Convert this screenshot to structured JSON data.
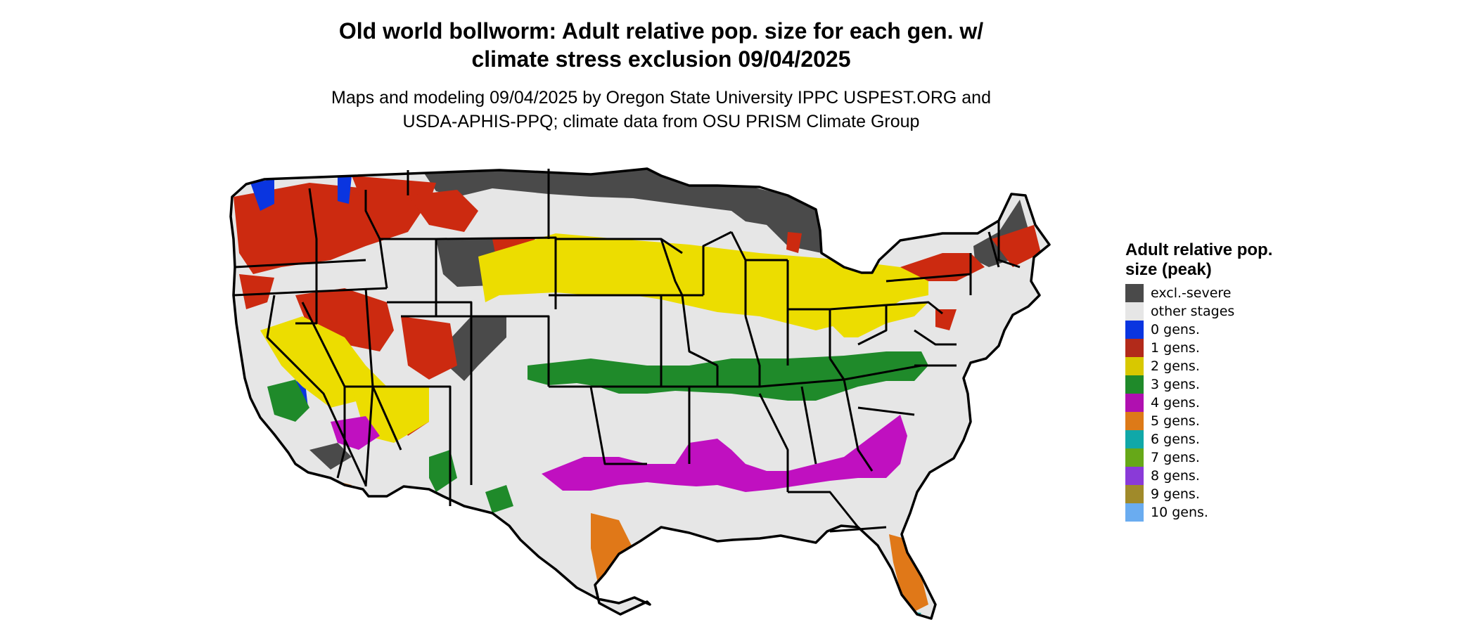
{
  "title_line1": "Old world bollworm: Adult relative pop. size for each gen. w/",
  "title_line2": "climate stress exclusion 09/04/2025",
  "subtitle_line1": "Maps and modeling 09/04/2025 by Oregon State University IPPC USPEST.ORG and",
  "subtitle_line2": "USDA-APHIS-PPQ; climate data from OSU PRISM Climate Group",
  "legend": {
    "title": "Adult relative pop. size (peak)",
    "items": [
      {
        "label": "excl.-severe",
        "color": "#4a4a4a"
      },
      {
        "label": "other stages",
        "color": "#e6e6e6"
      },
      {
        "label": "0 gens.",
        "color": "#0a35e0"
      },
      {
        "label": "1 gens.",
        "color": "#b22a1a"
      },
      {
        "label": "2 gens.",
        "color": "#d8c800"
      },
      {
        "label": "3 gens.",
        "color": "#1f8a2a"
      },
      {
        "label": "4 gens.",
        "color": "#b010b0"
      },
      {
        "label": "5 gens.",
        "color": "#dd7a18"
      },
      {
        "label": "6 gens.",
        "color": "#10a8a8"
      },
      {
        "label": "7 gens.",
        "color": "#66a818"
      },
      {
        "label": "8 gens.",
        "color": "#8a3ad8"
      },
      {
        "label": "9 gens.",
        "color": "#a08a2a"
      },
      {
        "label": "10 gens.",
        "color": "#6aacf0"
      }
    ]
  }
}
